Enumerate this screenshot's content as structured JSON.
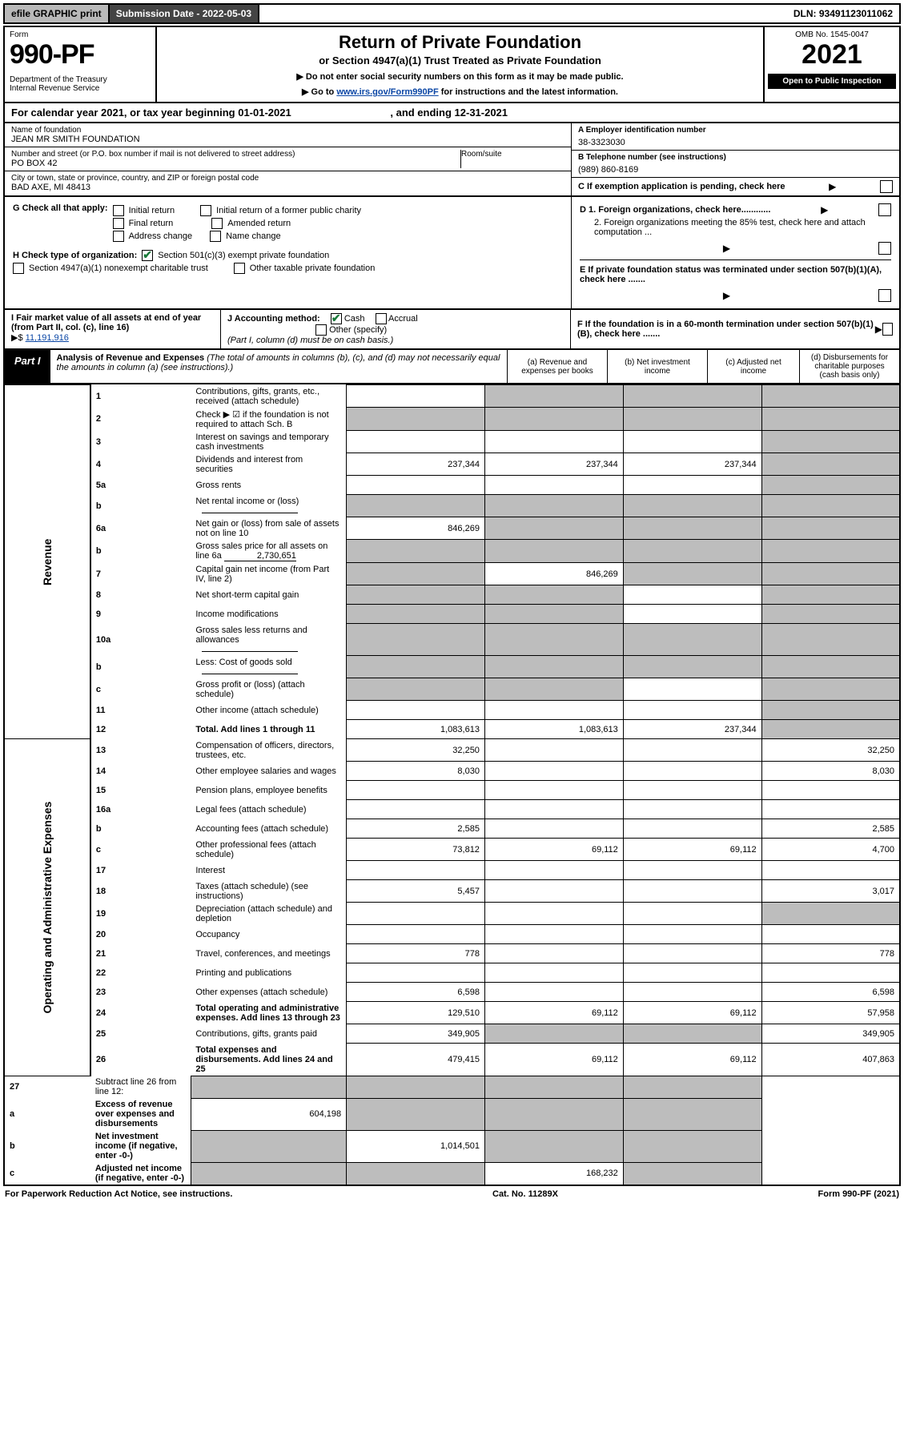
{
  "topbar": {
    "efile": "efile GRAPHIC print",
    "submission_label": "Submission Date - 2022-05-03",
    "dln": "DLN: 93491123011062"
  },
  "header": {
    "form_label": "Form",
    "form_no": "990-PF",
    "dept": "Department of the Treasury",
    "irs": "Internal Revenue Service",
    "title": "Return of Private Foundation",
    "subtitle": "or Section 4947(a)(1) Trust Treated as Private Foundation",
    "note1": "▶ Do not enter social security numbers on this form as it may be made public.",
    "note2_pre": "▶ Go to ",
    "note2_link": "www.irs.gov/Form990PF",
    "note2_post": " for instructions and the latest information.",
    "omb": "OMB No. 1545-0047",
    "year": "2021",
    "open": "Open to Public Inspection"
  },
  "calendar": {
    "text": "For calendar year 2021, or tax year beginning 01-01-2021",
    "ending": ", and ending 12-31-2021"
  },
  "entity": {
    "name_label": "Name of foundation",
    "name": "JEAN MR SMITH FOUNDATION",
    "addr_label": "Number and street (or P.O. box number if mail is not delivered to street address)",
    "addr": "PO BOX 42",
    "room_label": "Room/suite",
    "city_label": "City or town, state or province, country, and ZIP or foreign postal code",
    "city": "BAD AXE, MI  48413",
    "ein_label": "A Employer identification number",
    "ein": "38-3323030",
    "phone_label": "B Telephone number (see instructions)",
    "phone": "(989) 860-8169",
    "c_label": "C If exemption application is pending, check here"
  },
  "checks": {
    "g_label": "G Check all that apply:",
    "g_opts": [
      "Initial return",
      "Initial return of a former public charity",
      "Final return",
      "Amended return",
      "Address change",
      "Name change"
    ],
    "h_label": "H Check type of organization:",
    "h1": "Section 501(c)(3) exempt private foundation",
    "h2": "Section 4947(a)(1) nonexempt charitable trust",
    "h3": "Other taxable private foundation",
    "d1": "D 1. Foreign organizations, check here............",
    "d2": "2. Foreign organizations meeting the 85% test, check here and attach computation ...",
    "e": "E  If private foundation status was terminated under section 507(b)(1)(A), check here .......",
    "f": "F  If the foundation is in a 60-month termination under section 507(b)(1)(B), check here ......."
  },
  "fmv": {
    "i_label": "I Fair market value of all assets at end of year (from Part II, col. (c), line 16)",
    "i_arrow": "▶$",
    "i_value": "11,191,916",
    "j_label": "J Accounting method:",
    "j_cash": "Cash",
    "j_accrual": "Accrual",
    "j_other": "Other (specify)",
    "j_note": "(Part I, column (d) must be on cash basis.)"
  },
  "part1": {
    "label": "Part I",
    "title": "Analysis of Revenue and Expenses",
    "note": " (The total of amounts in columns (b), (c), and (d) may not necessarily equal the amounts in column (a) (see instructions).)",
    "col_a": "(a) Revenue and expenses per books",
    "col_b": "(b) Net investment income",
    "col_c": "(c) Adjusted net income",
    "col_d": "(d) Disbursements for charitable purposes (cash basis only)"
  },
  "sidelabels": {
    "revenue": "Revenue",
    "expenses": "Operating and Administrative Expenses"
  },
  "rows": [
    {
      "n": "1",
      "d": "Contributions, gifts, grants, etc., received (attach schedule)",
      "a": "",
      "b": "grey",
      "c": "grey",
      "dd": "grey"
    },
    {
      "n": "2",
      "d": "Check ▶ ☑ if the foundation is not required to attach Sch. B",
      "a": "grey",
      "b": "grey",
      "c": "grey",
      "dd": "grey",
      "dotrow": true
    },
    {
      "n": "3",
      "d": "Interest on savings and temporary cash investments",
      "a": "",
      "b": "",
      "c": "",
      "dd": "grey"
    },
    {
      "n": "4",
      "d": "Dividends and interest from securities",
      "a": "237,344",
      "b": "237,344",
      "c": "237,344",
      "dd": "grey"
    },
    {
      "n": "5a",
      "d": "Gross rents",
      "a": "",
      "b": "",
      "c": "",
      "dd": "grey"
    },
    {
      "n": "b",
      "d": "Net rental income or (loss)",
      "a": "grey",
      "b": "grey",
      "c": "grey",
      "dd": "grey",
      "inline": true
    },
    {
      "n": "6a",
      "d": "Net gain or (loss) from sale of assets not on line 10",
      "a": "846,269",
      "b": "grey",
      "c": "grey",
      "dd": "grey"
    },
    {
      "n": "b",
      "d": "Gross sales price for all assets on line 6a",
      "inline_val": "2,730,651",
      "a": "grey",
      "b": "grey",
      "c": "grey",
      "dd": "grey"
    },
    {
      "n": "7",
      "d": "Capital gain net income (from Part IV, line 2)",
      "a": "grey",
      "b": "846,269",
      "c": "grey",
      "dd": "grey"
    },
    {
      "n": "8",
      "d": "Net short-term capital gain",
      "a": "grey",
      "b": "grey",
      "c": "",
      "dd": "grey"
    },
    {
      "n": "9",
      "d": "Income modifications",
      "a": "grey",
      "b": "grey",
      "c": "",
      "dd": "grey"
    },
    {
      "n": "10a",
      "d": "Gross sales less returns and allowances",
      "a": "grey",
      "b": "grey",
      "c": "grey",
      "dd": "grey",
      "inline": true
    },
    {
      "n": "b",
      "d": "Less: Cost of goods sold",
      "a": "grey",
      "b": "grey",
      "c": "grey",
      "dd": "grey",
      "inline": true
    },
    {
      "n": "c",
      "d": "Gross profit or (loss) (attach schedule)",
      "a": "grey",
      "b": "grey",
      "c": "",
      "dd": "grey"
    },
    {
      "n": "11",
      "d": "Other income (attach schedule)",
      "a": "",
      "b": "",
      "c": "",
      "dd": "grey"
    },
    {
      "n": "12",
      "d": "Total. Add lines 1 through 11",
      "bold": true,
      "a": "1,083,613",
      "b": "1,083,613",
      "c": "237,344",
      "dd": "grey"
    }
  ],
  "exp_rows": [
    {
      "n": "13",
      "d": "Compensation of officers, directors, trustees, etc.",
      "a": "32,250",
      "b": "",
      "c": "",
      "dd": "32,250"
    },
    {
      "n": "14",
      "d": "Other employee salaries and wages",
      "a": "8,030",
      "b": "",
      "c": "",
      "dd": "8,030"
    },
    {
      "n": "15",
      "d": "Pension plans, employee benefits",
      "a": "",
      "b": "",
      "c": "",
      "dd": ""
    },
    {
      "n": "16a",
      "d": "Legal fees (attach schedule)",
      "a": "",
      "b": "",
      "c": "",
      "dd": ""
    },
    {
      "n": "b",
      "d": "Accounting fees (attach schedule)",
      "a": "2,585",
      "b": "",
      "c": "",
      "dd": "2,585"
    },
    {
      "n": "c",
      "d": "Other professional fees (attach schedule)",
      "a": "73,812",
      "b": "69,112",
      "c": "69,112",
      "dd": "4,700"
    },
    {
      "n": "17",
      "d": "Interest",
      "a": "",
      "b": "",
      "c": "",
      "dd": ""
    },
    {
      "n": "18",
      "d": "Taxes (attach schedule) (see instructions)",
      "a": "5,457",
      "b": "",
      "c": "",
      "dd": "3,017"
    },
    {
      "n": "19",
      "d": "Depreciation (attach schedule) and depletion",
      "a": "",
      "b": "",
      "c": "",
      "dd": "grey"
    },
    {
      "n": "20",
      "d": "Occupancy",
      "a": "",
      "b": "",
      "c": "",
      "dd": ""
    },
    {
      "n": "21",
      "d": "Travel, conferences, and meetings",
      "a": "778",
      "b": "",
      "c": "",
      "dd": "778"
    },
    {
      "n": "22",
      "d": "Printing and publications",
      "a": "",
      "b": "",
      "c": "",
      "dd": ""
    },
    {
      "n": "23",
      "d": "Other expenses (attach schedule)",
      "a": "6,598",
      "b": "",
      "c": "",
      "dd": "6,598"
    },
    {
      "n": "24",
      "d": "Total operating and administrative expenses. Add lines 13 through 23",
      "bold": true,
      "a": "129,510",
      "b": "69,112",
      "c": "69,112",
      "dd": "57,958"
    },
    {
      "n": "25",
      "d": "Contributions, gifts, grants paid",
      "a": "349,905",
      "b": "grey",
      "c": "grey",
      "dd": "349,905"
    },
    {
      "n": "26",
      "d": "Total expenses and disbursements. Add lines 24 and 25",
      "bold": true,
      "a": "479,415",
      "b": "69,112",
      "c": "69,112",
      "dd": "407,863"
    }
  ],
  "bottom_rows": [
    {
      "n": "27",
      "d": "Subtract line 26 from line 12:",
      "a": "grey",
      "b": "grey",
      "c": "grey",
      "dd": "grey"
    },
    {
      "n": "a",
      "d": "Excess of revenue over expenses and disbursements",
      "bold": true,
      "a": "604,198",
      "b": "grey",
      "c": "grey",
      "dd": "grey"
    },
    {
      "n": "b",
      "d": "Net investment income (if negative, enter -0-)",
      "bold": true,
      "a": "grey",
      "b": "1,014,501",
      "c": "grey",
      "dd": "grey"
    },
    {
      "n": "c",
      "d": "Adjusted net income (if negative, enter -0-)",
      "bold": true,
      "a": "grey",
      "b": "grey",
      "c": "168,232",
      "dd": "grey"
    }
  ],
  "footer": {
    "left": "For Paperwork Reduction Act Notice, see instructions.",
    "mid": "Cat. No. 11289X",
    "right": "Form 990-PF (2021)"
  },
  "colors": {
    "grey_cell": "#bdbdbd",
    "link": "#0a46a5",
    "check_green": "#1a7a3a"
  }
}
